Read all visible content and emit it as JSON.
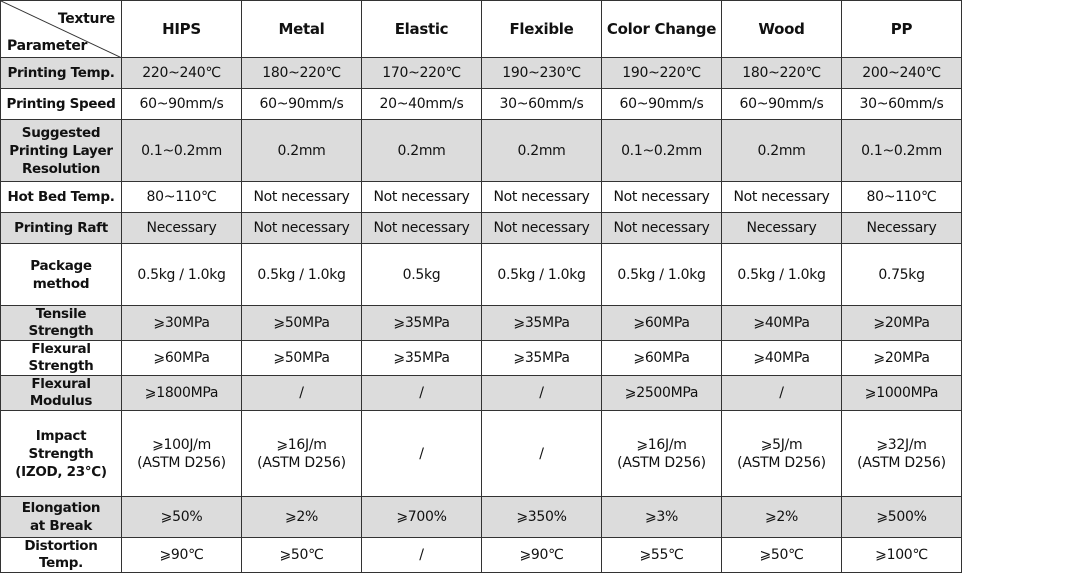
{
  "table": {
    "corner": {
      "top": "Texture",
      "bottom": "Parameter"
    },
    "columns": [
      "HIPS",
      "Metal",
      "Elastic",
      "Flexible",
      "Color Change",
      "Wood",
      "PP"
    ],
    "rows": [
      {
        "label": "Printing Temp.",
        "cells": [
          "220~240℃",
          "180~220℃",
          "170~220℃",
          "190~230℃",
          "190~220℃",
          "180~220℃",
          "200~240℃"
        ]
      },
      {
        "label": "Printing Speed",
        "cells": [
          "60~90mm/s",
          "60~90mm/s",
          "20~40mm/s",
          "30~60mm/s",
          "60~90mm/s",
          "60~90mm/s",
          "30~60mm/s"
        ]
      },
      {
        "label": [
          "Suggested",
          "Printing Layer",
          "Resolution"
        ],
        "cells": [
          "0.1~0.2mm",
          "0.2mm",
          "0.2mm",
          "0.2mm",
          "0.1~0.2mm",
          "0.2mm",
          "0.1~0.2mm"
        ]
      },
      {
        "label": "Hot Bed Temp.",
        "cells": [
          "80~110℃",
          "Not necessary",
          "Not necessary",
          "Not necessary",
          "Not necessary",
          "Not necessary",
          "80~110℃"
        ]
      },
      {
        "label": "Printing Raft",
        "cells": [
          "Necessary",
          "Not necessary",
          "Not necessary",
          "Not necessary",
          "Not necessary",
          "Necessary",
          "Necessary"
        ]
      },
      {
        "label": [
          "Package",
          "method"
        ],
        "cells": [
          "0.5kg / 1.0kg",
          "0.5kg / 1.0kg",
          "0.5kg",
          "0.5kg / 1.0kg",
          "0.5kg / 1.0kg",
          "0.5kg / 1.0kg",
          "0.75kg"
        ]
      },
      {
        "label": "Tensile Strength",
        "cells": [
          "⩾30MPa",
          "⩾50MPa",
          "⩾35MPa",
          "⩾35MPa",
          "⩾60MPa",
          "⩾40MPa",
          "⩾20MPa"
        ]
      },
      {
        "label": "Flexural Strength",
        "cells": [
          "⩾60MPa",
          "⩾50MPa",
          "⩾35MPa",
          "⩾35MPa",
          "⩾60MPa",
          "⩾40MPa",
          "⩾20MPa"
        ]
      },
      {
        "label": "Flexural Modulus",
        "cells": [
          "⩾1800MPa",
          "/",
          "/",
          "/",
          "⩾2500MPa",
          "/",
          "⩾1000MPa"
        ]
      },
      {
        "label": [
          "Impact Strength",
          "(IZOD, 23℃)"
        ],
        "cells": [
          [
            "⩾100J/m",
            "(ASTM D256)"
          ],
          [
            "⩾16J/m",
            "(ASTM D256)"
          ],
          "/",
          "/",
          [
            "⩾16J/m",
            "(ASTM D256)"
          ],
          [
            "⩾5J/m",
            "(ASTM D256)"
          ],
          [
            "⩾32J/m",
            "(ASTM D256)"
          ]
        ]
      },
      {
        "label": [
          "Elongation",
          "at Break"
        ],
        "cells": [
          "⩾50%",
          "⩾2%",
          "⩾700%",
          "⩾350%",
          "⩾3%",
          "⩾2%",
          "⩾500%"
        ]
      },
      {
        "label": "Distortion Temp.",
        "cells": [
          "⩾90℃",
          "⩾50℃",
          "/",
          "⩾90℃",
          "⩾55℃",
          "⩾50℃",
          "⩾100℃"
        ]
      }
    ]
  }
}
